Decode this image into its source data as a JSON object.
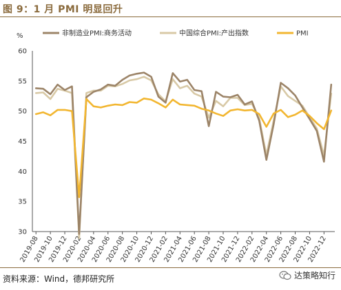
{
  "figure": {
    "title": "图 9：1 月 PMI 明显回升",
    "source": "资料来源：Wind，德邦研究所",
    "watermark": "达策略知行"
  },
  "chart_data": {
    "type": "line",
    "ylabel": "%",
    "ylim": [
      30,
      60
    ],
    "yticks": [
      30,
      35,
      40,
      45,
      50,
      55,
      60
    ],
    "xticks": [
      "2019-08",
      "2019-10",
      "2019-12",
      "2020-02",
      "2020-04",
      "2020-06",
      "2020-08",
      "2020-10",
      "2020-12",
      "2021-02",
      "2021-04",
      "2021-06",
      "2021-08",
      "2021-10",
      "2021-12",
      "2022-02",
      "2022-04",
      "2022-06",
      "2022-08",
      "2022-10",
      "2022-12"
    ],
    "x": [
      "2019-08",
      "2019-09",
      "2019-10",
      "2019-11",
      "2019-12",
      "2020-01",
      "2020-02",
      "2020-03",
      "2020-04",
      "2020-05",
      "2020-06",
      "2020-07",
      "2020-08",
      "2020-09",
      "2020-10",
      "2020-11",
      "2020-12",
      "2021-01",
      "2021-02",
      "2021-03",
      "2021-04",
      "2021-05",
      "2021-06",
      "2021-07",
      "2021-08",
      "2021-09",
      "2021-10",
      "2021-11",
      "2021-12",
      "2022-01",
      "2022-02",
      "2022-03",
      "2022-04",
      "2022-05",
      "2022-06",
      "2022-07",
      "2022-08",
      "2022-09",
      "2022-10",
      "2022-11",
      "2022-12",
      "2023-01"
    ],
    "grid": false,
    "legend_position": "top",
    "series": [
      {
        "name": "非制造业PMI:商务活动",
        "color": "#9c8468",
        "values": [
          53.8,
          53.7,
          52.8,
          54.4,
          53.5,
          54.1,
          29.6,
          52.3,
          53.2,
          53.6,
          54.4,
          54.2,
          55.2,
          55.9,
          56.2,
          56.4,
          55.7,
          52.4,
          51.4,
          56.3,
          54.9,
          55.2,
          53.5,
          53.3,
          47.5,
          53.2,
          52.4,
          52.3,
          52.7,
          51.1,
          51.6,
          48.4,
          41.9,
          47.8,
          54.7,
          53.8,
          52.6,
          50.6,
          48.7,
          46.7,
          41.6,
          54.4
        ]
      },
      {
        "name": "中国综合PMI:产出指数",
        "color": "#d8c9a6",
        "values": [
          53.0,
          53.1,
          52.0,
          53.7,
          53.4,
          53.0,
          28.9,
          53.0,
          53.4,
          53.4,
          54.2,
          54.1,
          54.5,
          55.1,
          55.3,
          55.7,
          55.1,
          52.8,
          51.6,
          55.3,
          53.8,
          54.2,
          52.9,
          52.4,
          48.9,
          51.7,
          50.8,
          52.2,
          52.2,
          51.0,
          51.2,
          48.8,
          42.7,
          48.4,
          54.1,
          52.5,
          51.7,
          50.9,
          49.0,
          47.1,
          42.6,
          52.9
        ]
      },
      {
        "name": "PMI",
        "color": "#f2b630",
        "values": [
          49.5,
          49.8,
          49.3,
          50.2,
          50.2,
          50.0,
          35.7,
          52.0,
          50.8,
          50.6,
          50.9,
          51.1,
          51.0,
          51.5,
          51.4,
          52.1,
          51.9,
          51.3,
          50.6,
          51.9,
          51.1,
          51.0,
          50.9,
          50.4,
          50.1,
          49.6,
          49.2,
          50.1,
          50.3,
          50.1,
          50.2,
          49.5,
          47.4,
          49.6,
          50.2,
          49.0,
          49.4,
          50.1,
          49.2,
          48.0,
          47.0,
          50.1
        ]
      }
    ]
  }
}
